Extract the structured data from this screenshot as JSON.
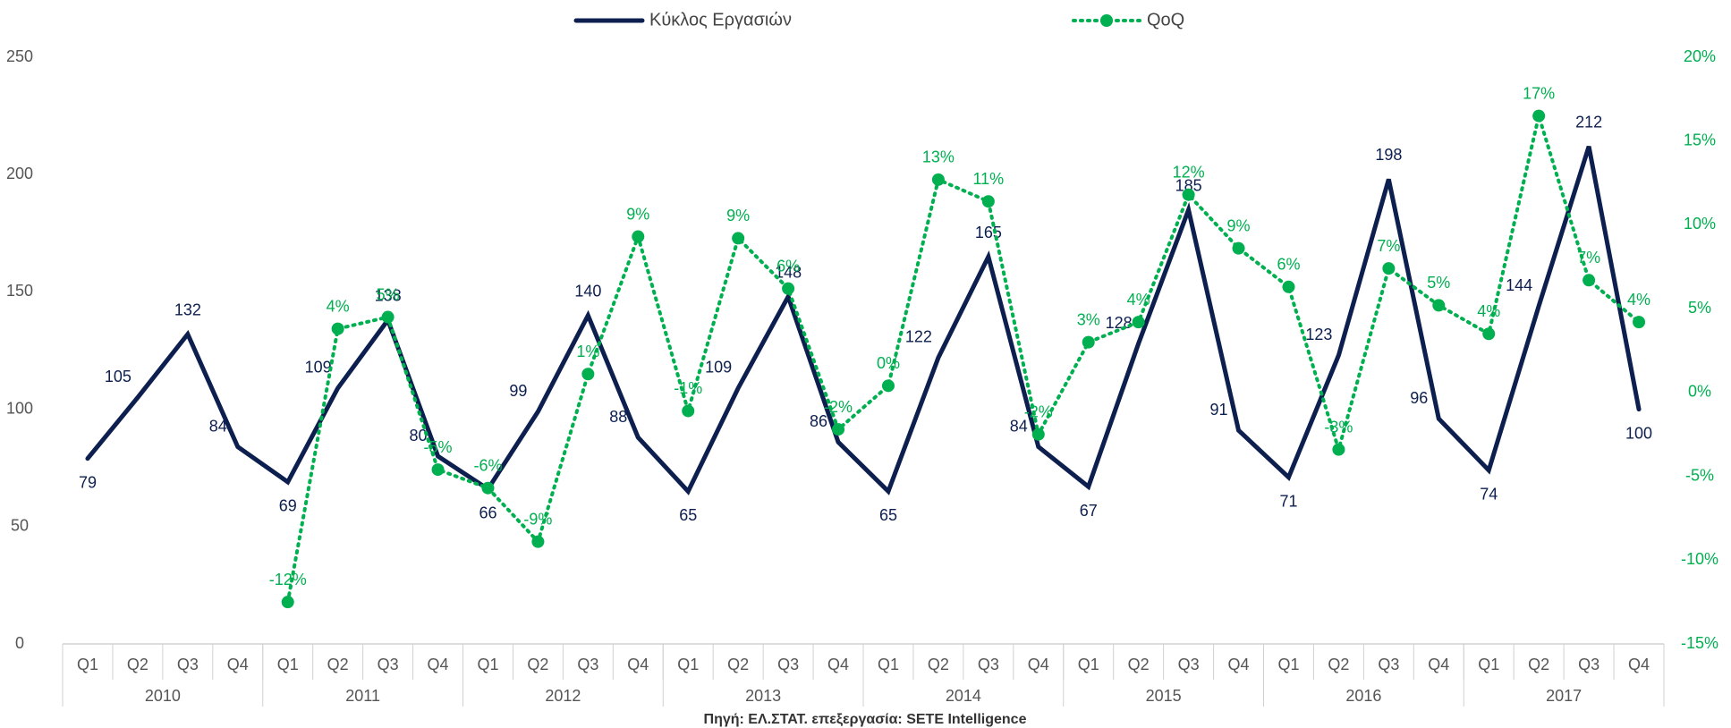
{
  "chart_data": {
    "type": "line",
    "categories": [
      "Q1",
      "Q2",
      "Q3",
      "Q4",
      "Q1",
      "Q2",
      "Q3",
      "Q4",
      "Q1",
      "Q2",
      "Q3",
      "Q4",
      "Q1",
      "Q2",
      "Q3",
      "Q4",
      "Q1",
      "Q2",
      "Q3",
      "Q4",
      "Q1",
      "Q2",
      "Q3",
      "Q4",
      "Q1",
      "Q2",
      "Q3",
      "Q4",
      "Q1",
      "Q2",
      "Q3",
      "Q4"
    ],
    "groups": [
      "2010",
      "2011",
      "2012",
      "2013",
      "2014",
      "2015",
      "2016",
      "2017"
    ],
    "series": [
      {
        "name": "Κύκλος Εργασιών",
        "color": "#0d1f4f",
        "values": [
          79,
          105,
          132,
          84,
          69,
          109,
          138,
          80,
          66,
          99,
          140,
          88,
          65,
          109,
          148,
          86,
          65,
          122,
          165,
          84,
          67,
          128,
          185,
          91,
          71,
          123,
          198,
          96,
          74,
          144,
          212,
          100
        ]
      },
      {
        "name": "QoQ",
        "color": "#00b050",
        "axis": "y2",
        "dotted": true,
        "values": [
          null,
          null,
          null,
          null,
          -12.5,
          3.8,
          4.5,
          -4.6,
          -5.7,
          -8.9,
          1.1,
          9.3,
          -1.1,
          9.2,
          6.2,
          -2.2,
          0.4,
          12.7,
          11.4,
          -2.5,
          3.0,
          4.2,
          11.8,
          8.6,
          6.3,
          -3.4,
          7.4,
          5.2,
          3.5,
          16.5,
          6.7,
          4.2
        ],
        "value_labels": [
          null,
          null,
          null,
          null,
          "-12%",
          "4%",
          "5%",
          "-5%",
          "-6%",
          "-9%",
          "1%",
          "9%",
          "-1%",
          "9%",
          "6%",
          "-2%",
          "0%",
          "13%",
          "11%",
          "-2%",
          "3%",
          "4%",
          "12%",
          "9%",
          "6%",
          "-3%",
          "7%",
          "5%",
          "4%",
          "17%",
          "7%",
          "4%"
        ]
      }
    ],
    "ylim": [
      0,
      250
    ],
    "yticks": [
      0,
      50,
      100,
      150,
      200,
      250
    ],
    "y2lim": [
      -15,
      20
    ],
    "y2ticks": [
      {
        "value": -15,
        "label": "-15%"
      },
      {
        "value": -10,
        "label": "-10%"
      },
      {
        "value": -5,
        "label": "-5%"
      },
      {
        "value": 0,
        "label": "0%"
      },
      {
        "value": 5,
        "label": "5%"
      },
      {
        "value": 10,
        "label": "10%"
      },
      {
        "value": 15,
        "label": "15%"
      },
      {
        "value": 20,
        "label": "20%"
      }
    ],
    "grid": false,
    "legend": "top",
    "source": "Πηγή: ΕΛ.ΣΤΑΤ. επεξεργασία: SETE Intelligence"
  }
}
